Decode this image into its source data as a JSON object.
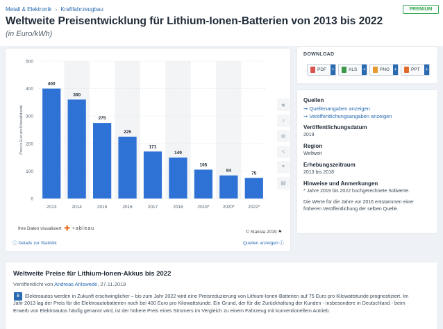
{
  "breadcrumb": [
    "Metall & Elektronik",
    "›",
    "Kraftfahrzeugbau"
  ],
  "premium": "PREMIUM",
  "header": {
    "title": "Weltweite Preisentwicklung für Lithium-Ionen-Batterien von 2013 bis 2022",
    "subtitle": "(in Euro/kWh)"
  },
  "chart_data": {
    "type": "bar",
    "categories": [
      "2013",
      "2014",
      "2015",
      "2016",
      "2017",
      "2018",
      "2019*",
      "2020*",
      "2022*"
    ],
    "values": [
      400,
      360,
      275,
      225,
      171,
      149,
      105,
      84,
      75
    ],
    "ylabel": "Preis in Euro pro Kilowattstunde",
    "ylim": [
      0,
      500
    ],
    "yticks": [
      0,
      100,
      200,
      300,
      400,
      500
    ],
    "bar_color": "#2f72d6",
    "grid": true
  },
  "chart_footer": {
    "visualized_by": "Ihre Daten visualisiert",
    "tableau": "+ableau",
    "copyright": "© Statista 2019",
    "details": "Details zur Statistik",
    "sources_link": "Quellen anzeigen"
  },
  "side_icons": [
    "star-icon",
    "bell-icon",
    "gear-icon",
    "share-icon",
    "quote-icon",
    "print-icon"
  ],
  "download": {
    "title": "DOWNLOAD",
    "buttons": [
      {
        "label": "PDF",
        "color": "#d9534f"
      },
      {
        "label": "XLS",
        "color": "#3c9a4b"
      },
      {
        "label": "PNG",
        "color": "#e89a2c"
      },
      {
        "label": "PPT",
        "color": "#e06a2c"
      }
    ]
  },
  "info": {
    "sources_h": "Quellen",
    "sources_link1": "Quellenangaben anzeigen",
    "sources_link2": "Veröffentlichungsangaben anzeigen",
    "pubdate_h": "Veröffentlichungsdatum",
    "pubdate_v": "2019",
    "region_h": "Region",
    "region_v": "Weltweit",
    "period_h": "Erhebungszeitraum",
    "period_v": "2013 bis 2018",
    "notes_h": "Hinweise und Anmerkungen",
    "notes_v1": "* Jahre 2019 bis 2022 hochgerechnete Sollwerte.",
    "notes_v2": "Die Werte für die Jahre vor 2016 entstammen einer früheren Veröffentlichung der selben Quelle."
  },
  "article": {
    "title": "Weltweite Preise für Lithium-Ionen-Akkus bis 2022",
    "published_prefix": "Veröffentlicht von",
    "author": "Andreas Ahlswede",
    "date": ", 27.11.2019",
    "icon": "li",
    "text": "Elektroautos werden in Zukunft erschwinglicher – bis zum Jahr 2022 wird eine Preisreduzierung von Lithium-Ionen-Batterien auf 75 Euro pro Kilowattstunde prognostiziert. Im Jahr 2013 lag der Preis für die Elektroautobatterien noch bei 400 Euro pro Kilowattstunde. Ein Grund, der für die Zurückhaltung der Kunden - insbesondere in Deutschland - beim Erwerb von Elektroautos häufig genannt wird, ist der höhere Preis eines Stromers im Vergleich zu einem Fahrzeug mit konventionellem Antrieb."
  }
}
